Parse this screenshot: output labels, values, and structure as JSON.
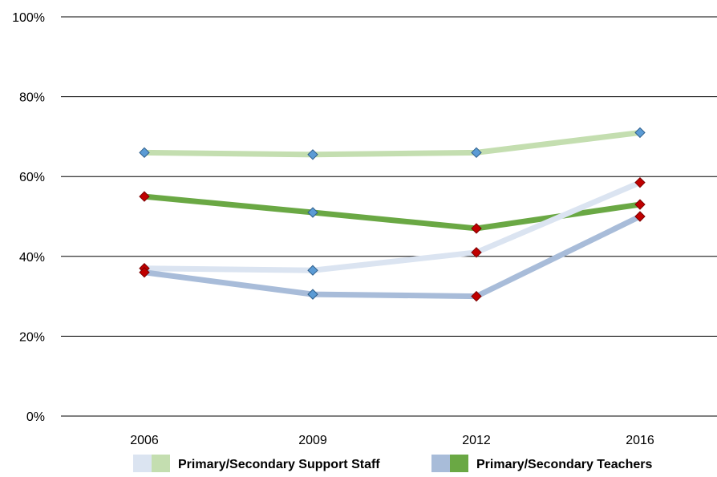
{
  "chart_data": {
    "type": "line",
    "categories": [
      "2006",
      "2009",
      "2012",
      "2016"
    ],
    "y_ticks": [
      "0%",
      "20%",
      "40%",
      "60%",
      "80%",
      "100%"
    ],
    "ylim": [
      0,
      100
    ],
    "grid": true,
    "legend_position": "bottom",
    "series": [
      {
        "group": "Primary/Secondary Support Staff",
        "values": [
          66,
          65.5,
          66,
          71
        ],
        "line_color": "#c4deb0",
        "marker_color": "#5b9bd5",
        "marker_edge": "#2e5e8a"
      },
      {
        "group": "Primary/Secondary Teachers",
        "values": [
          55,
          51,
          47,
          53
        ],
        "line_color": "#6aa844",
        "marker_color": "#5b9bd5",
        "marker_edge": "#2e5e8a",
        "marker_overrides": {
          "0": "red",
          "2": "red",
          "3": "red"
        }
      },
      {
        "group": "Primary/Secondary Support Staff",
        "values": [
          37,
          36.5,
          41,
          58.5
        ],
        "line_color": "#dbe4f1",
        "marker_color": "#5b9bd5",
        "marker_edge": "#2e5e8a",
        "marker_overrides": {
          "0": "red",
          "2": "red",
          "3": "red"
        }
      },
      {
        "group": "Primary/Secondary Teachers",
        "values": [
          36,
          30.5,
          30,
          50
        ],
        "line_color": "#a8bcd9",
        "marker_color": "#5b9bd5",
        "marker_edge": "#2e5e8a",
        "marker_overrides": {
          "0": "red",
          "2": "red",
          "3": "red"
        }
      }
    ],
    "legend": [
      {
        "label": "Primary/Secondary Support Staff",
        "swatch_colors": [
          "#dbe4f1",
          "#c4deb0"
        ]
      },
      {
        "label": "Primary/Secondary Teachers",
        "swatch_colors": [
          "#a8bcd9",
          "#6aa844"
        ]
      }
    ],
    "red_marker_color": "#c00000",
    "red_marker_edge": "#7a0000"
  }
}
